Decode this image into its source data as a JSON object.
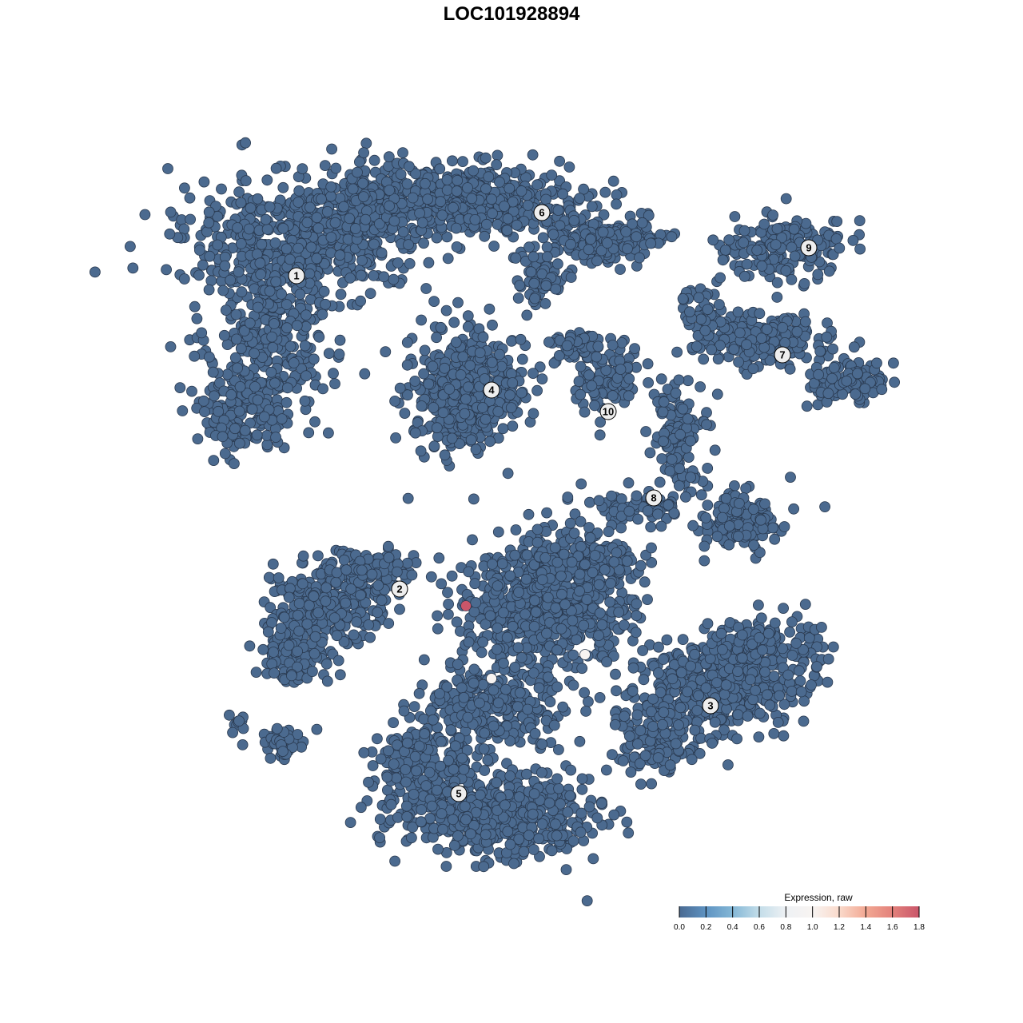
{
  "chart_data": {
    "type": "scatter",
    "title": "LOC101928894",
    "xlabel": "",
    "ylabel": "",
    "grid": false,
    "axes_visible": false,
    "baseline_value": 0.0,
    "clusters": [
      "1",
      "2",
      "3",
      "4",
      "5",
      "6",
      "7",
      "8",
      "9",
      "10"
    ],
    "highlighted_points": [
      {
        "value": 1.8,
        "near_cluster": "2"
      },
      {
        "value": 1.0,
        "near_cluster": "3"
      },
      {
        "value": 1.0,
        "near_cluster": "5"
      }
    ],
    "legend": {
      "title": "Expression, raw",
      "placement": "bottom-right",
      "range": [
        0.0,
        1.8
      ],
      "ticks": [
        "0.0",
        "0.2",
        "0.4",
        "0.6",
        "0.8",
        "1.0",
        "1.2",
        "1.4",
        "1.6",
        "1.8"
      ],
      "colors": [
        "#4a6a92",
        "#5e93c2",
        "#84b7d6",
        "#c3dde9",
        "#eef1f4",
        "#f8f4f2",
        "#fadacb",
        "#f2a893",
        "#e3817b",
        "#c9566a"
      ]
    },
    "point_color": "#4b6a8f",
    "point_stroke": "#2a3a50"
  }
}
